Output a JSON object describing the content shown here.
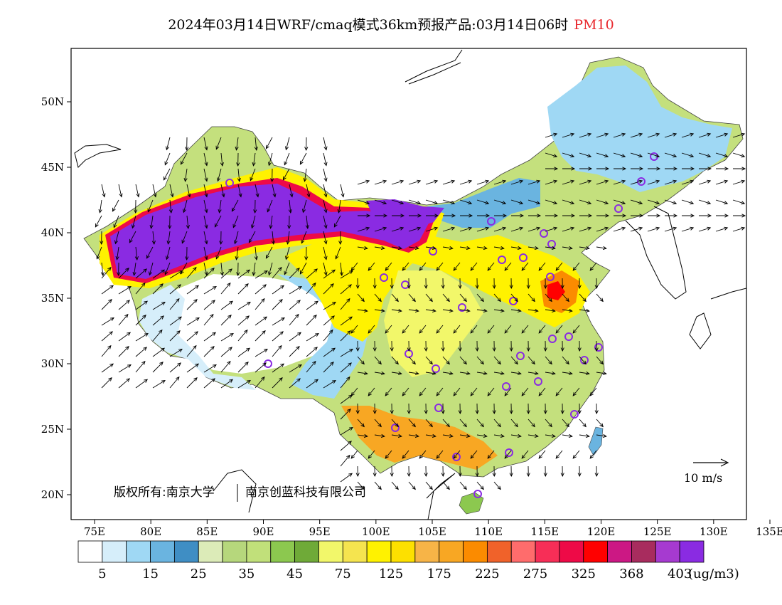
{
  "header": {
    "title": "2024年03月14日WRF/cmaq模式36km预报产品:03月14日06时",
    "pollutant": "PM10",
    "pollutant_color": "#e8262b"
  },
  "map": {
    "lon_ticks": [
      "75E",
      "80E",
      "85E",
      "90E",
      "95E",
      "100E",
      "105E",
      "110E",
      "115E",
      "120E",
      "125E",
      "130E",
      "135E"
    ],
    "lat_ticks": [
      "50N",
      "45N",
      "40N",
      "35N",
      "30N",
      "25N",
      "20N"
    ],
    "copyright": "版权所有:南京大学",
    "company": "南京创蓝科技有限公司",
    "wind_scale_label": "10 m/s"
  },
  "colorbar": {
    "colors": [
      "#ffffff",
      "#d6eefa",
      "#9fd8f4",
      "#6ab4e0",
      "#3f8ec4",
      "#dcebb8",
      "#b6d77c",
      "#c1e07a",
      "#8cc84f",
      "#6faa38",
      "#f2f76a",
      "#f5e44f",
      "#fff200",
      "#fde000",
      "#f7b447",
      "#f8a723",
      "#fb8b00",
      "#f0622a",
      "#ff6c6c",
      "#f72e57",
      "#ee0a47",
      "#ff0000",
      "#cc1884",
      "#a82c5e",
      "#a63ad0",
      "#8a2be2"
    ],
    "labels": [
      "5",
      "15",
      "25",
      "35",
      "45",
      "75",
      "125",
      "175",
      "225",
      "275",
      "325",
      "368",
      "403"
    ],
    "unit": "(ug/m3)"
  }
}
